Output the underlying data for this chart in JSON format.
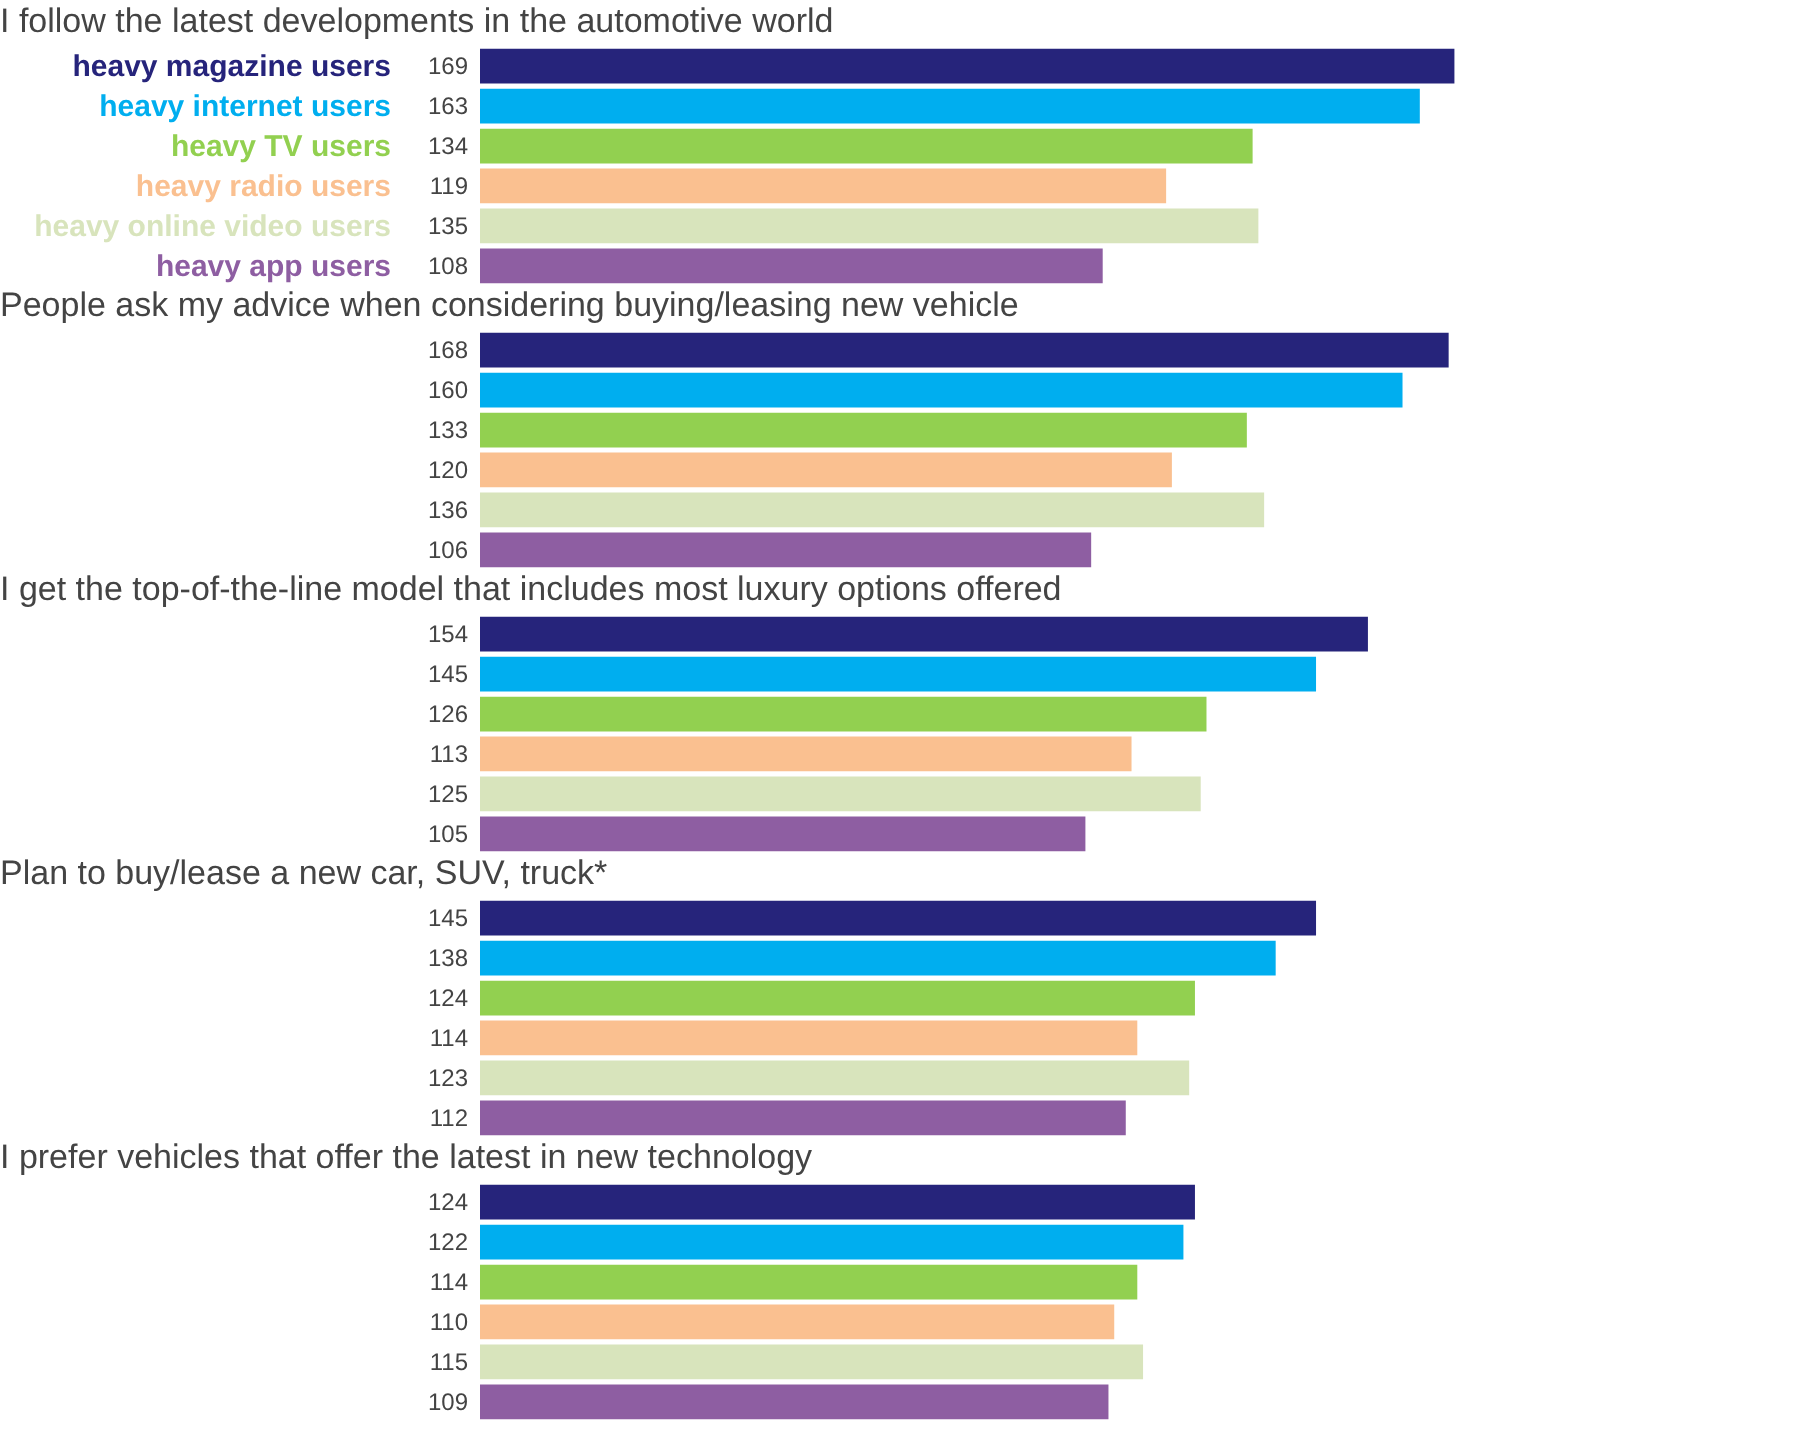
{
  "chart_data": [
    {
      "type": "bar",
      "orientation": "horizontal",
      "title": "I follow the latest developments in the automotive world",
      "categories": [
        "heavy magazine users",
        "heavy internet users",
        "heavy TV users",
        "heavy radio users",
        "heavy online video users",
        "heavy app users"
      ],
      "data_labels": true,
      "xlim": [
        0,
        222
      ],
      "values": [
        169,
        163,
        134,
        119,
        135,
        108
      ],
      "colors": [
        "#26247b",
        "#00aeef",
        "#92d050",
        "#fac090",
        "#d8e4bc",
        "#8e5ea2"
      ]
    },
    {
      "type": "bar",
      "orientation": "horizontal",
      "title": "People ask my advice when considering buying/leasing new vehicle",
      "categories": [
        null,
        null,
        null,
        null,
        null,
        null
      ],
      "data_labels": true,
      "xlim": [
        0,
        222
      ],
      "values": [
        168,
        160,
        133,
        120,
        136,
        106
      ],
      "colors": [
        "#26247b",
        "#00aeef",
        "#92d050",
        "#fac090",
        "#d8e4bc",
        "#8e5ea2"
      ]
    },
    {
      "type": "bar",
      "orientation": "horizontal",
      "title": "I get the top-of-the-line model that includes most luxury options offered",
      "categories": [
        null,
        null,
        null,
        null,
        null,
        null
      ],
      "data_labels": true,
      "xlim": [
        0,
        222
      ],
      "values": [
        154,
        145,
        126,
        113,
        125,
        105
      ],
      "colors": [
        "#26247b",
        "#00aeef",
        "#92d050",
        "#fac090",
        "#d8e4bc",
        "#8e5ea2"
      ]
    },
    {
      "type": "bar",
      "orientation": "horizontal",
      "title": "Plan to buy/lease a new car, SUV, truck*",
      "categories": [
        null,
        null,
        null,
        null,
        null,
        null
      ],
      "data_labels": true,
      "xlim": [
        0,
        222
      ],
      "values": [
        145,
        138,
        124,
        114,
        123,
        112
      ],
      "colors": [
        "#26247b",
        "#00aeef",
        "#92d050",
        "#fac090",
        "#d8e4bc",
        "#8e5ea2"
      ]
    },
    {
      "type": "bar",
      "orientation": "horizontal",
      "title": "I prefer vehicles that offer the latest in new technology",
      "categories": [
        null,
        null,
        null,
        null,
        null,
        null
      ],
      "data_labels": true,
      "xlim": [
        0,
        222
      ],
      "values": [
        124,
        122,
        114,
        110,
        115,
        109
      ],
      "colors": [
        "#26247b",
        "#00aeef",
        "#92d050",
        "#fac090",
        "#d8e4bc",
        "#8e5ea2"
      ]
    }
  ]
}
